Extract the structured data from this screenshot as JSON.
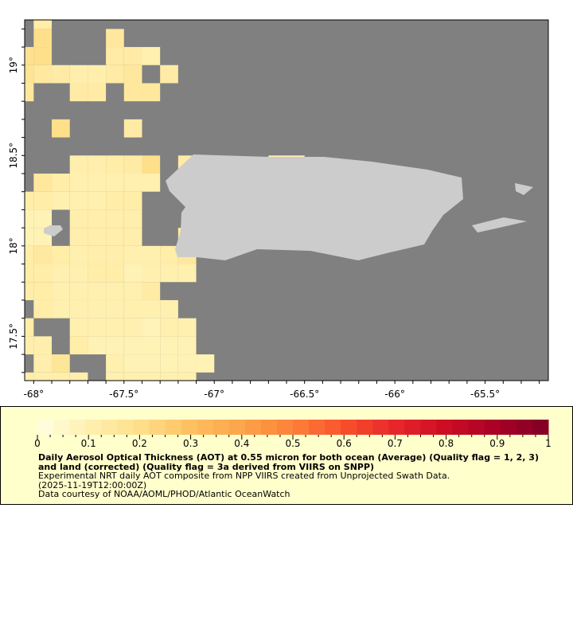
{
  "chart_data": {
    "type": "heatmap",
    "lon_ticks": [
      "-68°",
      "-67.5°",
      "-67°",
      "-66.5°",
      "-66°",
      "-65.5°"
    ],
    "lon_tick_values": [
      -68,
      -67.5,
      -67,
      -66.5,
      -66,
      -65.5
    ],
    "lat_ticks": [
      "19°",
      "18.5°",
      "18°",
      "17.5°"
    ],
    "lat_tick_values": [
      19,
      18.5,
      18,
      17.5
    ],
    "xlim": [
      -68.05,
      -65.15
    ],
    "ylim": [
      17.255,
      19.25
    ],
    "cell_size_deg": 0.1,
    "first_cell_center": {
      "lon": -68.05,
      "lat": 19.25
    },
    "grid": [
      [
        null,
        0.12,
        null,
        null,
        null,
        null,
        null,
        null,
        null,
        null,
        null,
        null,
        null,
        null,
        null,
        null
      ],
      [
        null,
        0.2,
        null,
        null,
        null,
        0.15,
        null,
        null,
        null,
        null,
        null,
        null,
        null,
        null,
        null,
        null
      ],
      [
        0.18,
        0.2,
        null,
        null,
        null,
        0.13,
        0.13,
        0.1,
        null,
        null,
        null,
        null,
        null,
        null,
        null,
        null
      ],
      [
        0.17,
        0.14,
        0.13,
        0.11,
        0.11,
        0.13,
        0.15,
        null,
        0.13,
        null,
        null,
        null,
        null,
        null,
        null,
        null
      ],
      [
        0.15,
        null,
        null,
        0.13,
        0.13,
        null,
        0.15,
        0.15,
        null,
        null,
        null,
        null,
        null,
        null,
        null,
        null
      ],
      [
        null,
        null,
        null,
        null,
        null,
        null,
        null,
        null,
        null,
        null,
        null,
        null,
        null,
        null,
        null,
        null
      ],
      [
        null,
        null,
        0.2,
        null,
        null,
        null,
        0.13,
        null,
        null,
        null,
        null,
        null,
        null,
        null,
        null,
        null
      ],
      [
        null,
        null,
        null,
        null,
        null,
        null,
        null,
        null,
        null,
        null,
        null,
        null,
        null,
        null,
        null,
        null
      ],
      [
        null,
        null,
        null,
        0.11,
        0.11,
        0.12,
        0.13,
        0.2,
        null,
        0.13,
        null,
        null,
        null,
        null,
        0.1,
        0.1
      ],
      [
        null,
        0.15,
        0.12,
        0.1,
        0.1,
        0.1,
        0.1,
        0.1,
        null,
        null,
        null,
        null,
        null,
        null,
        null,
        null
      ],
      [
        0.12,
        0.12,
        0.1,
        0.1,
        0.1,
        0.12,
        0.12,
        null,
        null,
        null,
        null,
        null,
        null,
        null,
        null,
        null
      ],
      [
        0.09,
        0.09,
        null,
        0.11,
        0.11,
        0.11,
        0.11,
        null,
        null,
        null,
        null,
        null,
        null,
        null,
        null,
        null
      ],
      [
        0.09,
        0.09,
        null,
        0.11,
        0.11,
        0.11,
        0.11,
        null,
        null,
        0.13,
        null,
        null,
        null,
        null,
        null,
        null
      ],
      [
        0.12,
        0.14,
        0.12,
        0.1,
        0.11,
        0.11,
        0.1,
        0.1,
        0.12,
        0.15,
        null,
        null,
        null,
        null,
        null,
        null
      ],
      [
        0.12,
        0.12,
        0.1,
        0.1,
        0.12,
        0.12,
        0.09,
        0.1,
        0.1,
        0.1,
        null,
        null,
        null,
        null,
        null,
        null
      ],
      [
        0.12,
        0.12,
        0.1,
        0.1,
        0.1,
        0.1,
        0.1,
        0.13,
        null,
        null,
        null,
        null,
        null,
        null,
        null,
        null
      ],
      [
        null,
        0.12,
        0.1,
        0.1,
        0.1,
        0.1,
        0.1,
        0.1,
        0.1,
        null,
        null,
        null,
        null,
        null,
        null,
        null
      ],
      [
        0.12,
        null,
        null,
        0.1,
        0.1,
        0.1,
        0.1,
        0.08,
        0.1,
        0.1,
        null,
        null,
        null,
        null,
        null,
        null
      ],
      [
        0.11,
        0.11,
        null,
        0.12,
        0.09,
        0.09,
        0.09,
        0.09,
        0.09,
        0.09,
        null,
        null,
        null,
        null,
        null,
        null
      ],
      [
        null,
        0.11,
        0.16,
        null,
        null,
        0.1,
        0.09,
        0.09,
        0.09,
        0.09,
        0.09,
        null,
        null,
        null,
        null,
        null
      ],
      [
        0.11,
        0.11,
        0.11,
        0.11,
        null,
        0.1,
        0.1,
        0.1,
        0.1,
        0.1,
        null,
        null,
        null,
        null,
        null,
        null
      ]
    ],
    "colorbar": {
      "range": [
        0,
        1
      ],
      "tick_labels": [
        "0",
        "0.1",
        "0.2",
        "0.3",
        "0.4",
        "0.5",
        "0.6",
        "0.7",
        "0.8",
        "0.9",
        "1"
      ],
      "colors": [
        "#ffffe0",
        "#fff0b0",
        "#fedf8a",
        "#fec060",
        "#fda44a",
        "#fc8038",
        "#f9502c",
        "#e8262a",
        "#cc0c24",
        "#a80026",
        "#800026"
      ]
    },
    "colors": {
      "no_data": "#808080",
      "land": "#cccccc",
      "legend_bg": "#ffffcc"
    }
  },
  "legend": {
    "title": "Daily Aerosol Optical Thickness (AOT) at 0.55 micron for both ocean (Average) (Quality flag = 1, 2, 3) and land (corrected) (Quality flag = 3a derived from VIIRS on SNPP)",
    "line1": "Experimental NRT daily AOT composite from NPP VIIRS created from Unprojected Swath Data.",
    "line2": "(2025-11-19T12:00:00Z)",
    "line3": "Data courtesy of NOAA/AOML/PHOD/Atlantic OceanWatch"
  }
}
